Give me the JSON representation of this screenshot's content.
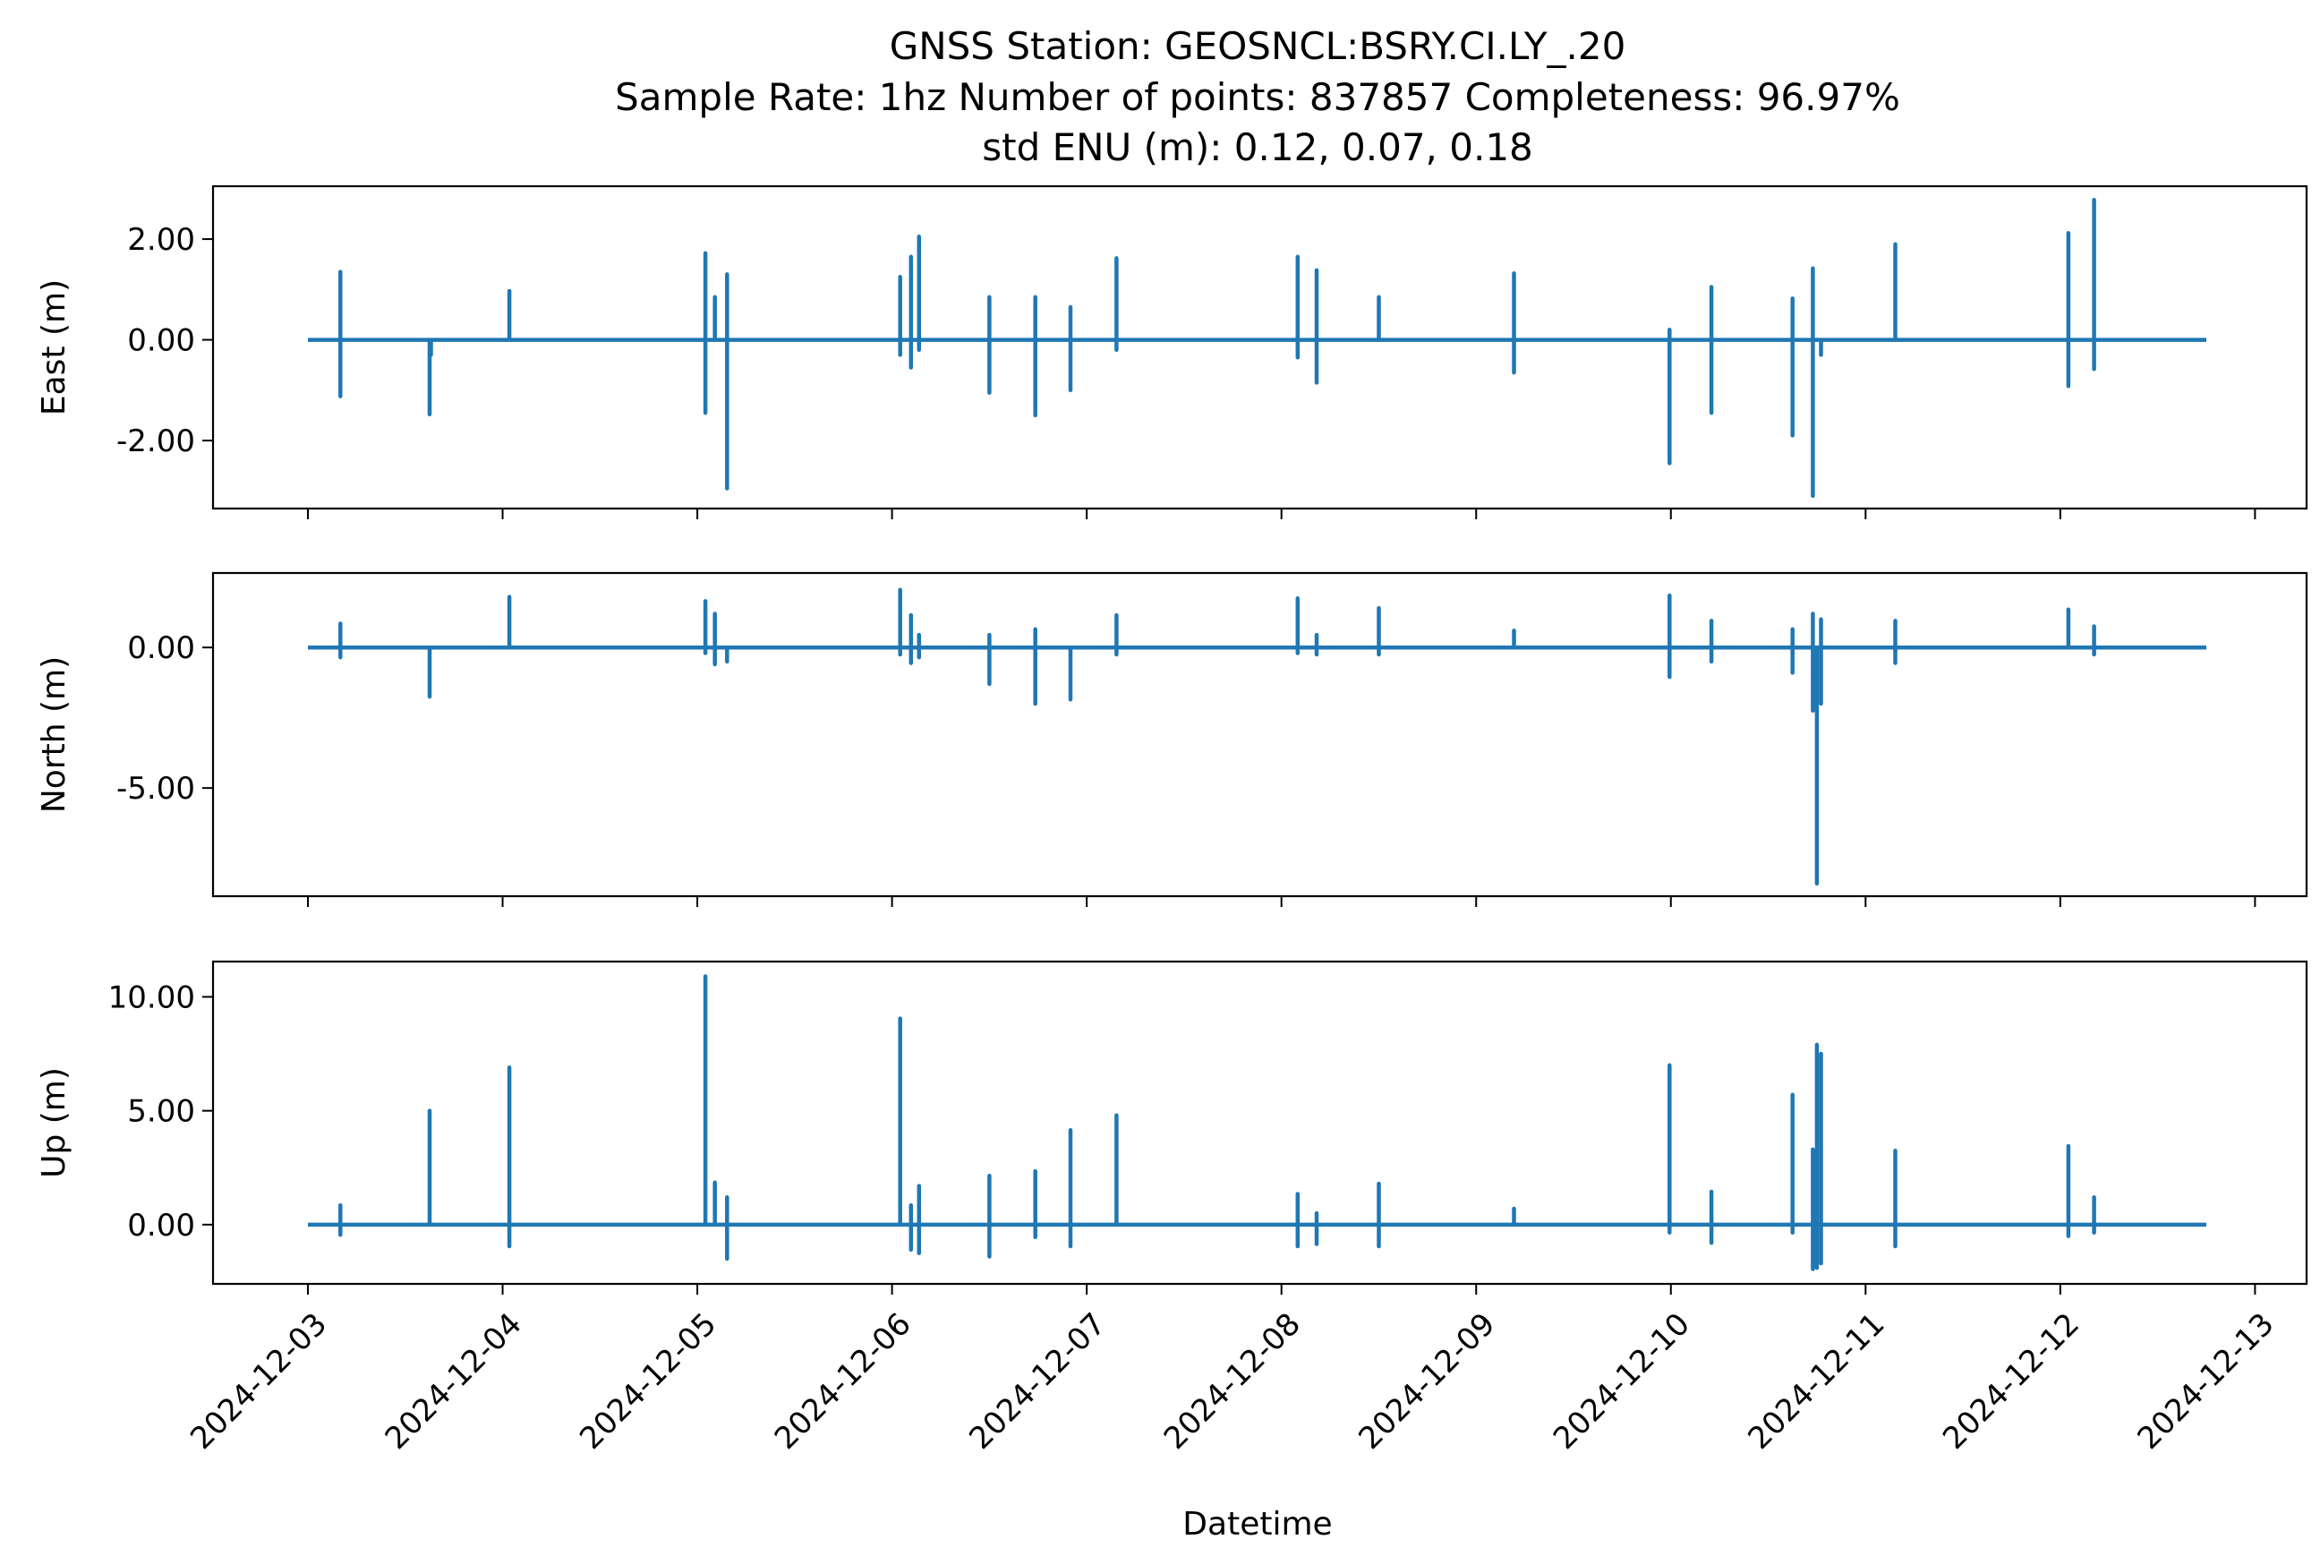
{
  "title_lines": [
    "GNSS Station: GEOSNCL:BSRY.CI.LY_.20",
    "Sample Rate: 1hz   Number of points: 837857    Completeness:  96.97%",
    "std ENU (m):  0.12, 0.07, 0.18"
  ],
  "colors": {
    "series": "#1f77b4",
    "axes": "#000000",
    "background": "#ffffff"
  },
  "chart_data": {
    "type": "line",
    "xlabel": "Datetime",
    "x_ticks": [
      "2024-12-03",
      "2024-12-04",
      "2024-12-05",
      "2024-12-06",
      "2024-12-07",
      "2024-12-08",
      "2024-12-09",
      "2024-12-10",
      "2024-12-11",
      "2024-12-12",
      "2024-12-13"
    ],
    "x_range": [
      "2024-12-03",
      "2024-12-13"
    ],
    "x_data_range": [
      "2024-12-03T00:00",
      "2024-12-12T18:00"
    ],
    "grid": false,
    "legend": "none",
    "panels": [
      {
        "ylabel": "East (m)",
        "ylim": [
          -3.35,
          3.05
        ],
        "yticks": [
          2.0,
          0.0,
          -2.0
        ],
        "ytick_labels": [
          "2.00",
          "0.00",
          "-2.00"
        ],
        "series": [
          {
            "points": [
              [
                "2024-12-03T00:00",
                0.0
              ],
              [
                "2024-12-03T04:00",
                1.35
              ],
              [
                "2024-12-03T04:00",
                -1.12
              ],
              [
                "2024-12-03T15:00",
                -1.48
              ],
              [
                "2024-12-03T15:10",
                -0.3
              ],
              [
                "2024-12-04T00:50",
                0.97
              ],
              [
                "2024-12-05T01:00",
                1.72
              ],
              [
                "2024-12-05T01:00",
                -1.45
              ],
              [
                "2024-12-05T02:10",
                0.85
              ],
              [
                "2024-12-05T03:40",
                1.3
              ],
              [
                "2024-12-05T03:40",
                -2.95
              ],
              [
                "2024-12-06T01:00",
                1.25
              ],
              [
                "2024-12-06T01:00",
                -0.3
              ],
              [
                "2024-12-06T02:20",
                1.65
              ],
              [
                "2024-12-06T02:20",
                -0.55
              ],
              [
                "2024-12-06T03:20",
                2.05
              ],
              [
                "2024-12-06T03:20",
                -0.2
              ],
              [
                "2024-12-06T12:00",
                0.85
              ],
              [
                "2024-12-06T12:00",
                -1.05
              ],
              [
                "2024-12-06T17:40",
                0.85
              ],
              [
                "2024-12-06T17:40",
                -1.5
              ],
              [
                "2024-12-06T22:00",
                0.65
              ],
              [
                "2024-12-06T22:00",
                -1.0
              ],
              [
                "2024-12-07T03:40",
                1.62
              ],
              [
                "2024-12-07T03:40",
                -0.2
              ],
              [
                "2024-12-08T02:00",
                1.65
              ],
              [
                "2024-12-08T02:00",
                -0.35
              ],
              [
                "2024-12-08T04:20",
                1.38
              ],
              [
                "2024-12-08T04:20",
                -0.85
              ],
              [
                "2024-12-08T12:00",
                0.85
              ],
              [
                "2024-12-09T04:40",
                1.32
              ],
              [
                "2024-12-09T04:40",
                -0.65
              ],
              [
                "2024-12-09T23:50",
                0.2
              ],
              [
                "2024-12-09T23:50",
                -2.45
              ],
              [
                "2024-12-10T05:00",
                1.05
              ],
              [
                "2024-12-10T05:00",
                -1.45
              ],
              [
                "2024-12-10T15:00",
                0.82
              ],
              [
                "2024-12-10T15:00",
                -1.9
              ],
              [
                "2024-12-10T17:30",
                1.42
              ],
              [
                "2024-12-10T17:30",
                -3.1
              ],
              [
                "2024-12-10T18:30",
                -0.3
              ],
              [
                "2024-12-11T03:40",
                1.9
              ],
              [
                "2024-12-12T01:00",
                2.12
              ],
              [
                "2024-12-12T01:00",
                -0.92
              ],
              [
                "2024-12-12T04:10",
                2.78
              ],
              [
                "2024-12-12T04:10",
                -0.58
              ],
              [
                "2024-12-12T18:00",
                0.0
              ]
            ]
          }
        ]
      },
      {
        "ylabel": "North (m)",
        "ylim": [
          -8.85,
          2.65
        ],
        "yticks": [
          0.0,
          -5.0
        ],
        "ytick_labels": [
          "0.00",
          "-5.00"
        ],
        "series": [
          {
            "points": [
              [
                "2024-12-03T00:00",
                0.0
              ],
              [
                "2024-12-03T04:00",
                0.85
              ],
              [
                "2024-12-03T04:00",
                -0.35
              ],
              [
                "2024-12-03T15:00",
                -1.75
              ],
              [
                "2024-12-04T00:50",
                1.8
              ],
              [
                "2024-12-05T01:00",
                1.65
              ],
              [
                "2024-12-05T01:00",
                -0.2
              ],
              [
                "2024-12-05T02:10",
                1.2
              ],
              [
                "2024-12-05T02:10",
                -0.6
              ],
              [
                "2024-12-05T03:40",
                -0.5
              ],
              [
                "2024-12-06T01:00",
                2.05
              ],
              [
                "2024-12-06T01:00",
                -0.25
              ],
              [
                "2024-12-06T02:20",
                1.15
              ],
              [
                "2024-12-06T02:20",
                -0.55
              ],
              [
                "2024-12-06T03:20",
                0.45
              ],
              [
                "2024-12-06T03:20",
                -0.35
              ],
              [
                "2024-12-06T12:00",
                0.45
              ],
              [
                "2024-12-06T12:00",
                -1.3
              ],
              [
                "2024-12-06T17:40",
                0.65
              ],
              [
                "2024-12-06T17:40",
                -2.0
              ],
              [
                "2024-12-06T22:00",
                -1.85
              ],
              [
                "2024-12-07T03:40",
                1.15
              ],
              [
                "2024-12-07T03:40",
                -0.25
              ],
              [
                "2024-12-08T02:00",
                1.75
              ],
              [
                "2024-12-08T02:00",
                -0.2
              ],
              [
                "2024-12-08T04:20",
                0.45
              ],
              [
                "2024-12-08T04:20",
                -0.25
              ],
              [
                "2024-12-08T12:00",
                1.4
              ],
              [
                "2024-12-08T12:00",
                -0.25
              ],
              [
                "2024-12-09T04:40",
                0.6
              ],
              [
                "2024-12-09T23:50",
                1.85
              ],
              [
                "2024-12-09T23:50",
                -1.05
              ],
              [
                "2024-12-10T05:00",
                0.95
              ],
              [
                "2024-12-10T05:00",
                -0.5
              ],
              [
                "2024-12-10T15:00",
                0.65
              ],
              [
                "2024-12-10T15:00",
                -0.9
              ],
              [
                "2024-12-10T17:30",
                1.2
              ],
              [
                "2024-12-10T17:30",
                -2.25
              ],
              [
                "2024-12-10T18:00",
                -8.4
              ],
              [
                "2024-12-10T18:30",
                1.0
              ],
              [
                "2024-12-10T18:30",
                -2.0
              ],
              [
                "2024-12-11T03:40",
                0.95
              ],
              [
                "2024-12-11T03:40",
                -0.55
              ],
              [
                "2024-12-12T01:00",
                1.35
              ],
              [
                "2024-12-12T04:10",
                0.75
              ],
              [
                "2024-12-12T04:10",
                -0.25
              ],
              [
                "2024-12-12T18:00",
                0.0
              ]
            ]
          }
        ]
      },
      {
        "ylabel": "Up (m)",
        "ylim": [
          -2.6,
          11.55
        ],
        "yticks": [
          10.0,
          5.0,
          0.0
        ],
        "ytick_labels": [
          "10.00",
          "5.00",
          "0.00"
        ],
        "series": [
          {
            "points": [
              [
                "2024-12-03T00:00",
                0.0
              ],
              [
                "2024-12-03T04:00",
                0.85
              ],
              [
                "2024-12-03T04:00",
                -0.45
              ],
              [
                "2024-12-03T15:00",
                5.0
              ],
              [
                "2024-12-04T00:50",
                6.9
              ],
              [
                "2024-12-04T00:50",
                -0.95
              ],
              [
                "2024-12-05T01:00",
                10.9
              ],
              [
                "2024-12-05T02:10",
                1.85
              ],
              [
                "2024-12-05T03:40",
                1.2
              ],
              [
                "2024-12-05T03:40",
                -1.5
              ],
              [
                "2024-12-06T01:00",
                9.05
              ],
              [
                "2024-12-06T02:20",
                0.85
              ],
              [
                "2024-12-06T02:20",
                -1.1
              ],
              [
                "2024-12-06T03:20",
                1.7
              ],
              [
                "2024-12-06T03:20",
                -1.25
              ],
              [
                "2024-12-06T12:00",
                2.15
              ],
              [
                "2024-12-06T12:00",
                -1.4
              ],
              [
                "2024-12-06T17:40",
                2.35
              ],
              [
                "2024-12-06T17:40",
                -0.55
              ],
              [
                "2024-12-06T22:00",
                4.15
              ],
              [
                "2024-12-06T22:00",
                -0.95
              ],
              [
                "2024-12-07T03:40",
                4.8
              ],
              [
                "2024-12-08T02:00",
                1.35
              ],
              [
                "2024-12-08T02:00",
                -0.95
              ],
              [
                "2024-12-08T04:20",
                0.5
              ],
              [
                "2024-12-08T04:20",
                -0.85
              ],
              [
                "2024-12-08T12:00",
                1.8
              ],
              [
                "2024-12-08T12:00",
                -0.95
              ],
              [
                "2024-12-09T04:40",
                0.7
              ],
              [
                "2024-12-09T23:50",
                7.0
              ],
              [
                "2024-12-09T23:50",
                -0.35
              ],
              [
                "2024-12-10T05:00",
                1.45
              ],
              [
                "2024-12-10T05:00",
                -0.8
              ],
              [
                "2024-12-10T15:00",
                5.7
              ],
              [
                "2024-12-10T15:00",
                -0.35
              ],
              [
                "2024-12-10T17:30",
                3.3
              ],
              [
                "2024-12-10T17:30",
                -1.95
              ],
              [
                "2024-12-10T18:00",
                7.9
              ],
              [
                "2024-12-10T18:00",
                -1.9
              ],
              [
                "2024-12-10T18:30",
                7.5
              ],
              [
                "2024-12-10T18:30",
                -1.7
              ],
              [
                "2024-12-11T03:40",
                3.25
              ],
              [
                "2024-12-11T03:40",
                -0.95
              ],
              [
                "2024-12-12T01:00",
                3.45
              ],
              [
                "2024-12-12T01:00",
                -0.5
              ],
              [
                "2024-12-12T04:10",
                1.2
              ],
              [
                "2024-12-12T04:10",
                -0.35
              ],
              [
                "2024-12-12T18:00",
                0.0
              ]
            ]
          }
        ]
      }
    ]
  }
}
